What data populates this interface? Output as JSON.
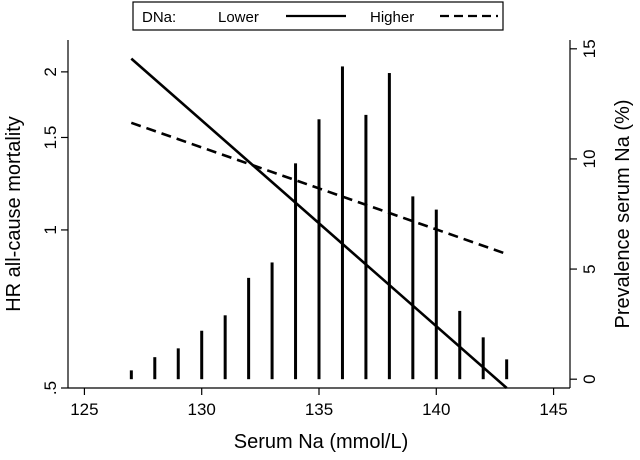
{
  "chart_data": {
    "type": "line",
    "xlabel": "Serum Na (mmol/L)",
    "ylabel_left": "HR all-cause mortality",
    "ylabel_right": "Prevalence serum Na (%)",
    "xlim": [
      124.3,
      145.7
    ],
    "x_ticks": [
      125,
      130,
      135,
      140,
      145
    ],
    "y_left_scale": "log",
    "y_left_lim": [
      0.5,
      2.3
    ],
    "y_left_ticks": [
      0.5,
      1,
      1.5,
      2
    ],
    "y_left_tick_labels": [
      ".5",
      "1",
      "1.5",
      "2"
    ],
    "y_right_lim": [
      -0.4,
      15.4
    ],
    "y_right_ticks": [
      0,
      5,
      10,
      15
    ],
    "legend": {
      "title": "DNa:",
      "entries": [
        {
          "label": "Lower",
          "style": "solid"
        },
        {
          "label": "Higher",
          "style": "dashed"
        }
      ],
      "placement": "top"
    },
    "series": [
      {
        "name": "Lower",
        "axis": "left",
        "style": "solid",
        "x": [
          127,
          143
        ],
        "y": [
          2.12,
          0.5
        ]
      },
      {
        "name": "Higher",
        "axis": "left",
        "style": "dashed",
        "x": [
          127,
          143
        ],
        "y": [
          1.6,
          0.9
        ]
      }
    ],
    "bars": {
      "axis": "right",
      "x": [
        127,
        128,
        129,
        130,
        131,
        132,
        133,
        134,
        135,
        136,
        137,
        138,
        139,
        140,
        141,
        142,
        143
      ],
      "values": [
        0.4,
        1.0,
        1.4,
        2.2,
        2.9,
        4.6,
        5.3,
        9.8,
        11.8,
        14.2,
        12.0,
        13.9,
        8.3,
        7.7,
        3.1,
        1.9,
        0.9
      ]
    }
  }
}
